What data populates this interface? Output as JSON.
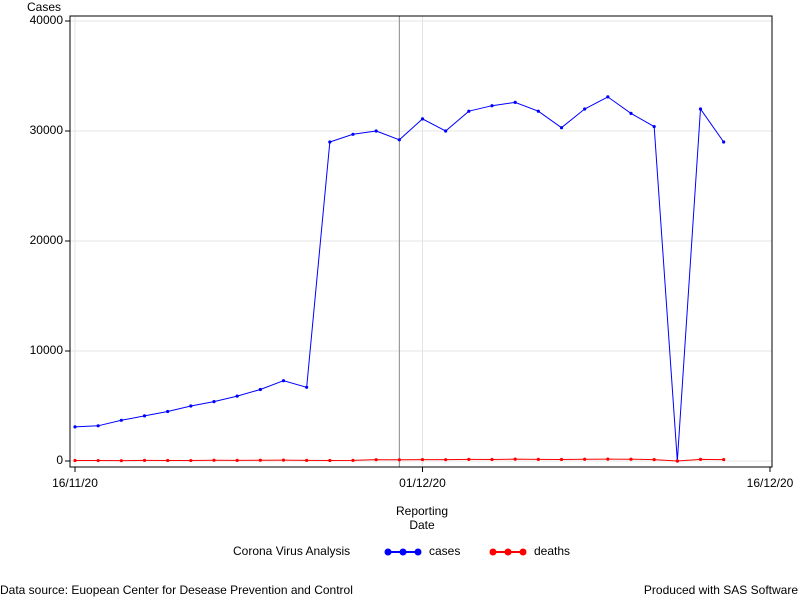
{
  "chart_data": {
    "type": "line",
    "y_label": "Cases",
    "x_label": "Reporting Date",
    "legend_title": "Corona Virus Analysis",
    "footnote_left": "Data source: Euopean Center for Desease Prevention and Control",
    "footnote_right": "Produced with SAS Software",
    "x": [
      "16/11/20",
      "17/11/20",
      "18/11/20",
      "19/11/20",
      "20/11/20",
      "21/11/20",
      "22/11/20",
      "23/11/20",
      "24/11/20",
      "25/11/20",
      "26/11/20",
      "27/11/20",
      "28/11/20",
      "29/11/20",
      "30/11/20",
      "01/12/20",
      "02/12/20",
      "03/12/20",
      "04/12/20",
      "05/12/20",
      "06/12/20",
      "07/12/20",
      "08/12/20",
      "09/12/20",
      "10/12/20",
      "11/12/20",
      "12/12/20",
      "13/12/20",
      "14/12/20"
    ],
    "series": [
      {
        "name": "cases",
        "color": "#0000ff",
        "values": [
          3100,
          3200,
          3700,
          4100,
          4500,
          5000,
          5400,
          5900,
          6500,
          7300,
          6700,
          29000,
          29700,
          30000,
          29200,
          31100,
          30000,
          31800,
          32300,
          32600,
          31800,
          30300,
          32000,
          33100,
          31600,
          30400,
          0,
          32000,
          29000
        ]
      },
      {
        "name": "deaths",
        "color": "#ff0000",
        "values": [
          50,
          40,
          30,
          60,
          50,
          40,
          70,
          60,
          70,
          80,
          60,
          50,
          60,
          120,
          110,
          130,
          120,
          150,
          140,
          170,
          150,
          140,
          160,
          170,
          160,
          130,
          0,
          150,
          130
        ]
      }
    ],
    "xlim": [
      "16/11/20",
      "16/12/20"
    ],
    "xticks": [
      "16/11/20",
      "01/12/20",
      "16/12/20"
    ],
    "ylim": [
      0,
      40000
    ],
    "yticks": [
      0,
      10000,
      20000,
      30000,
      40000
    ],
    "grid": true,
    "reference_line": "30/11/20"
  }
}
